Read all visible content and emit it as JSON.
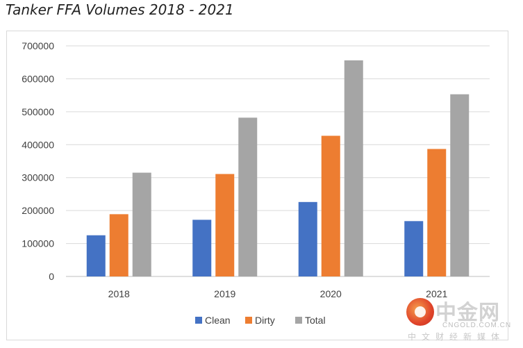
{
  "title": "Tanker FFA Volumes 2018 - 2021",
  "watermark": {
    "brand": "中金网",
    "url": "CNGOLD.COM.CN",
    "tagline": "中文财经新媒体"
  },
  "chart_data": {
    "type": "bar",
    "title": "Tanker FFA Volumes 2018 - 2021",
    "xlabel": "",
    "ylabel": "",
    "categories": [
      "2018",
      "2019",
      "2020",
      "2021"
    ],
    "ylim": [
      0,
      700000
    ],
    "yticks": [
      "0",
      "100000",
      "200000",
      "300000",
      "400000",
      "500000",
      "600000",
      "700000"
    ],
    "grid": true,
    "legend_position": "bottom",
    "series": [
      {
        "name": "Clean",
        "color": "#4472c4",
        "values": [
          125000,
          172000,
          226000,
          168000
        ]
      },
      {
        "name": "Dirty",
        "color": "#ed7d31",
        "values": [
          189000,
          311000,
          427000,
          387000
        ]
      },
      {
        "name": "Total",
        "color": "#a5a5a5",
        "values": [
          315000,
          482000,
          656000,
          553000
        ]
      }
    ]
  }
}
